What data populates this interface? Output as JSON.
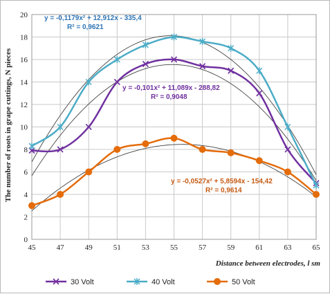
{
  "chart_data": {
    "type": "line",
    "title": "",
    "xlabel": "Distance between electrodes, l sm",
    "ylabel": "The number of roots in grape cuttings, N pieces",
    "x": [
      45,
      47,
      49,
      51,
      53,
      55,
      57,
      59,
      61,
      63,
      65
    ],
    "xlim": [
      45,
      65
    ],
    "ylim": [
      0,
      20
    ],
    "x_ticks": [
      "45",
      "47",
      "49",
      "51",
      "53",
      "55",
      "57",
      "59",
      "61",
      "63",
      "65"
    ],
    "y_ticks": [
      "0",
      "2",
      "4",
      "6",
      "8",
      "10",
      "12",
      "14",
      "16",
      "18",
      "20"
    ],
    "grid": true,
    "legend_position": "bottom",
    "series": [
      {
        "name": "30 Volt",
        "color": "#7030a0",
        "marker": "x",
        "values": [
          7.9,
          8.0,
          10.0,
          14.0,
          15.6,
          16.0,
          15.4,
          15.0,
          13.0,
          8.0,
          5.0
        ],
        "trendline": {
          "a": -0.101,
          "b": 11.089,
          "c": -288.82
        },
        "equation": "y = -0,101x² + 11,089x - 288,82",
        "r2": "R² = 0,9048"
      },
      {
        "name": "40 Volt",
        "color": "#4bacc6",
        "marker": "star",
        "values": [
          8.3,
          10.0,
          14.0,
          16.0,
          17.3,
          18.0,
          17.6,
          17.0,
          15.0,
          10.0,
          4.8
        ],
        "trendline": {
          "a": -0.1179,
          "b": 12.912,
          "c": -335.4
        },
        "equation": "y = -0,1179x² + 12,912x - 335,4",
        "r2": "R² = 0,9621"
      },
      {
        "name": "50 Volt",
        "color": "#e46c0a",
        "marker": "circle",
        "values": [
          3.0,
          4.0,
          6.0,
          8.0,
          8.5,
          9.0,
          8.0,
          7.7,
          7.0,
          6.0,
          4.0
        ],
        "trendline": {
          "a": -0.0527,
          "b": 5.8594,
          "c": -154.42
        },
        "equation": "y = -0,0527x² + 5,8594x - 154,42",
        "r2": "R² = 0,9614"
      }
    ]
  }
}
